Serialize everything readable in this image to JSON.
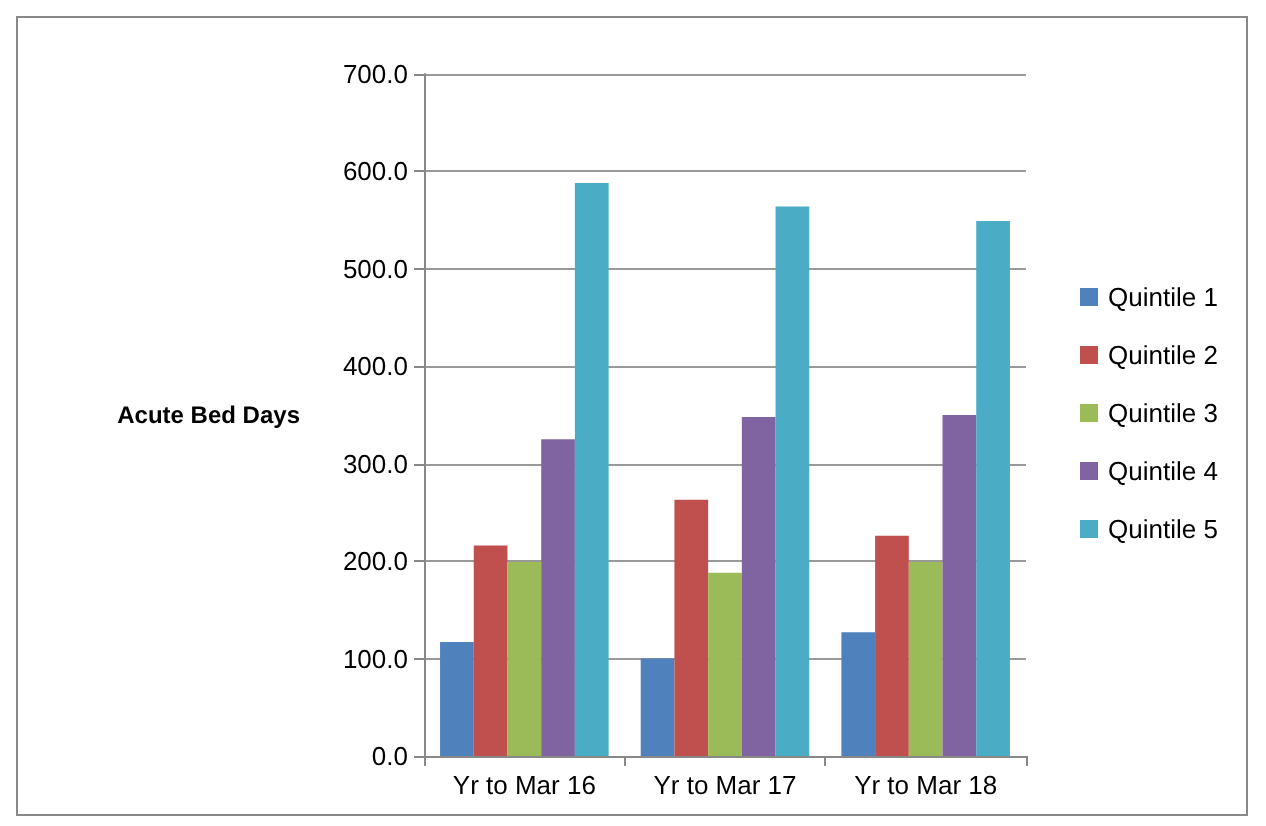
{
  "chart_data": {
    "type": "bar",
    "ylabel": "Acute Bed Days",
    "categories": [
      "Yr to Mar 16",
      "Yr to Mar 17",
      "Yr to Mar 18"
    ],
    "series": [
      {
        "name": "Quintile 1",
        "color": "#4f81bd",
        "values": [
          117,
          100,
          127
        ]
      },
      {
        "name": "Quintile 2",
        "color": "#c0504d",
        "values": [
          216,
          263,
          226
        ]
      },
      {
        "name": "Quintile 3",
        "color": "#9bbb59",
        "values": [
          199,
          188,
          199
        ]
      },
      {
        "name": "Quintile 4",
        "color": "#8064a2",
        "values": [
          325,
          348,
          350
        ]
      },
      {
        "name": "Quintile 5",
        "color": "#4bacc6",
        "values": [
          588,
          564,
          549
        ]
      }
    ],
    "ylim": [
      0,
      700
    ],
    "yticks": [
      {
        "value": 0,
        "label": "0.0"
      },
      {
        "value": 100,
        "label": "100.0"
      },
      {
        "value": 200,
        "label": "200.0"
      },
      {
        "value": 300,
        "label": "300.0"
      },
      {
        "value": 400,
        "label": "400.0"
      },
      {
        "value": 500,
        "label": "500.0"
      },
      {
        "value": 600,
        "label": "600.0"
      },
      {
        "value": 700,
        "label": "700.0"
      }
    ],
    "grid": "y",
    "legend": "right"
  }
}
